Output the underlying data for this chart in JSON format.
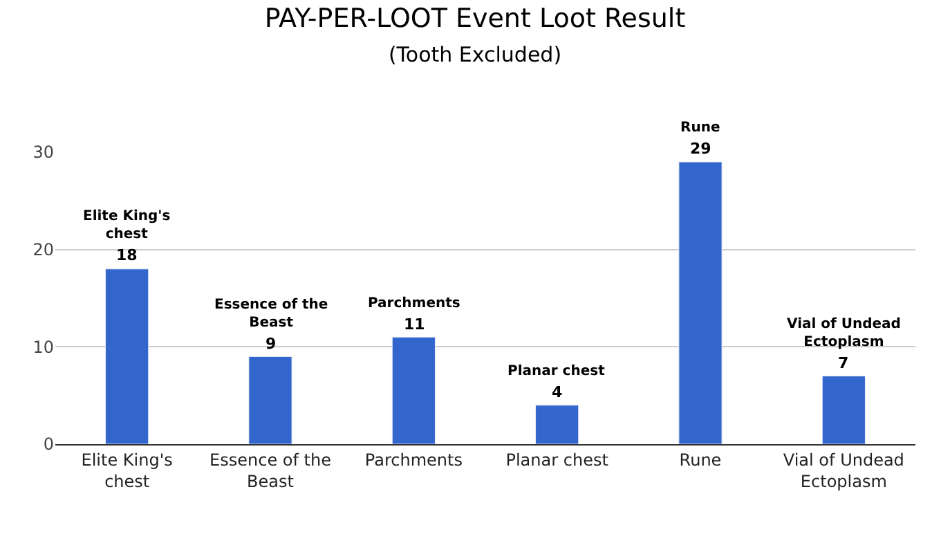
{
  "chart_data": {
    "type": "bar",
    "title": "PAY-PER-LOOT Event Loot Result",
    "subtitle": "(Tooth Excluded)",
    "categories": [
      "Elite King's chest",
      "Essence of the Beast",
      "Parchments",
      "Planar chest",
      "Rune",
      "Vial of Undead Ectoplasm"
    ],
    "values": [
      18,
      9,
      11,
      4,
      29,
      7
    ],
    "value_labels": [
      "18",
      "9",
      "11",
      "4",
      "29",
      "7"
    ],
    "color": "#3366cc",
    "ylim": [
      0,
      30
    ],
    "yticks": [
      0,
      10,
      20,
      30
    ],
    "grid": "y",
    "legend": false
  }
}
